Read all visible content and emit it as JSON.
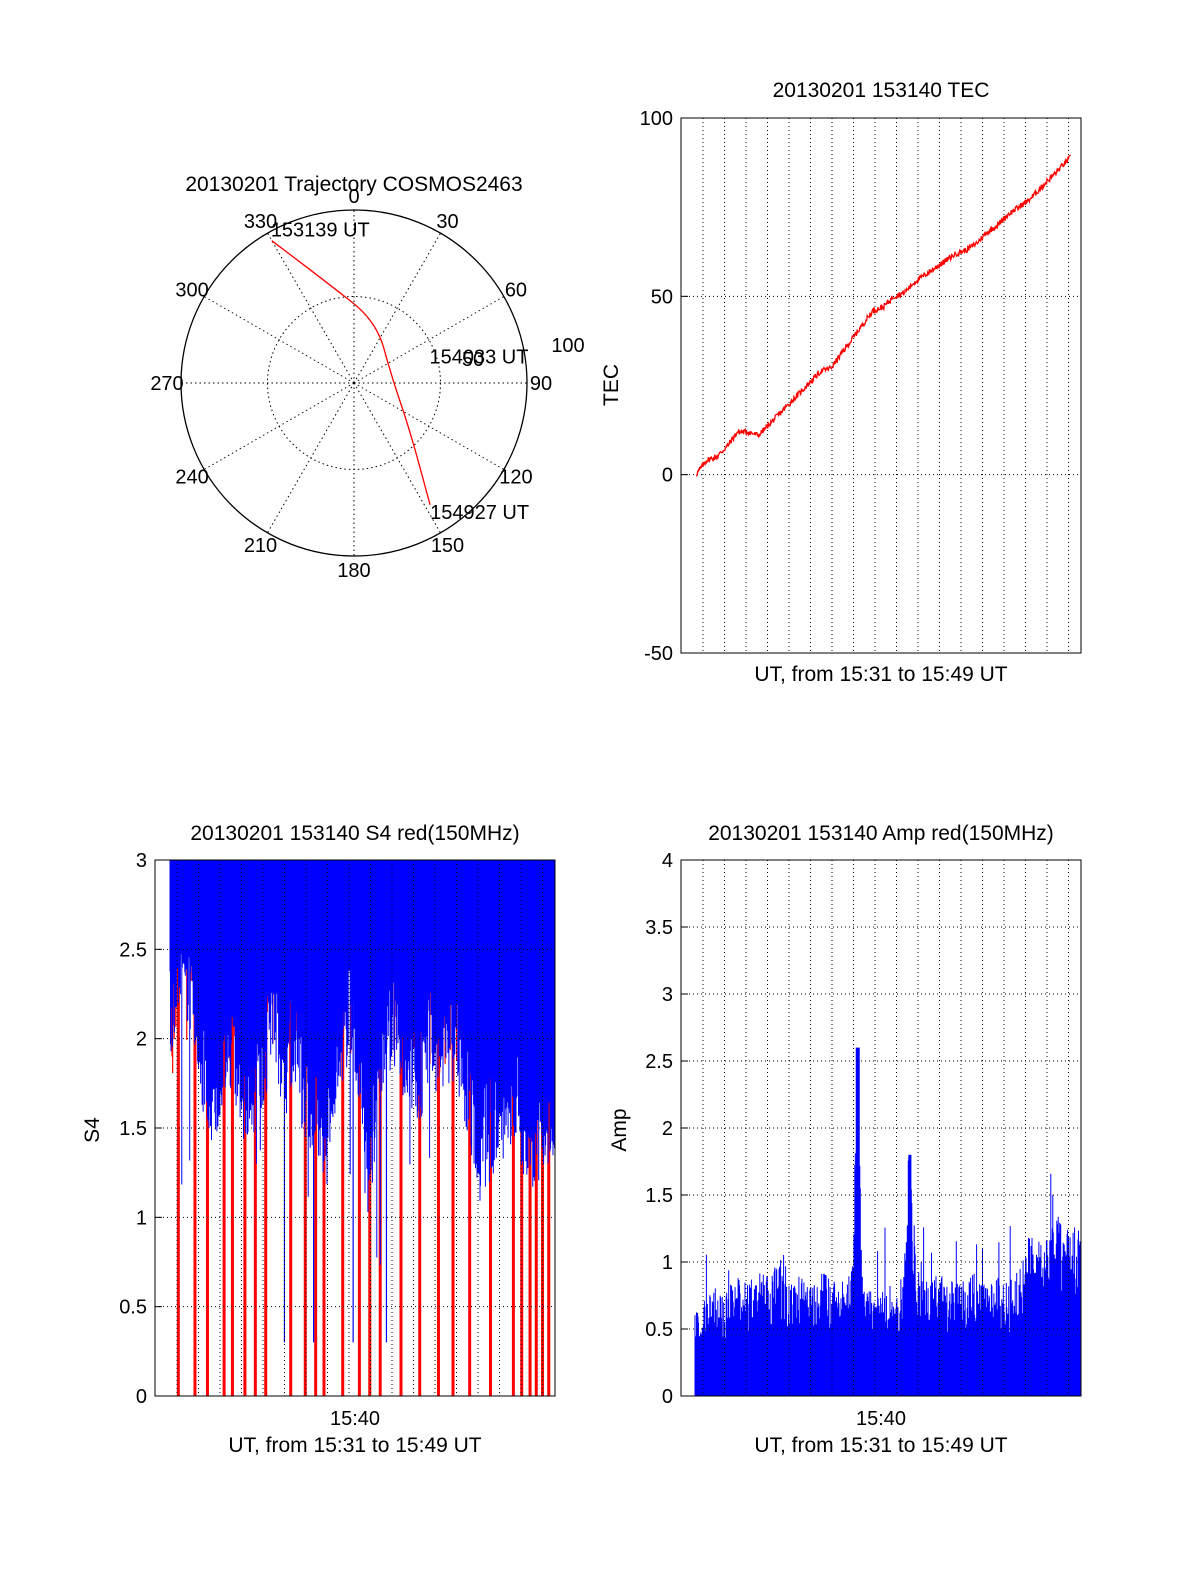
{
  "chart_data": [
    {
      "type": "polar",
      "title": "20130201 Trajectory COSMOS2463",
      "azimuth_labels": [
        "0",
        "30",
        "60",
        "90",
        "120",
        "150",
        "180",
        "210",
        "240",
        "270",
        "300",
        "330"
      ],
      "radius_labels": [
        "50",
        "100"
      ],
      "radius_max": 100,
      "grid": true,
      "series": [
        {
          "color": "#ff0000",
          "points": [
            {
              "az": 330,
              "r": 95
            },
            {
              "az": 345,
              "r": 60
            },
            {
              "az": 20,
              "r": 38
            },
            {
              "az": 80,
              "r": 22
            },
            {
              "az": 130,
              "r": 42
            },
            {
              "az": 148,
              "r": 83
            }
          ]
        }
      ],
      "annotations": [
        {
          "text": "153139 UT",
          "az": 330,
          "r": 95
        },
        {
          "text": "154033 UT",
          "az": 80,
          "r": 22
        },
        {
          "text": "154927 UT",
          "az": 148,
          "r": 83
        }
      ]
    },
    {
      "type": "line",
      "title": "20130201 153140 TEC",
      "xlabel": "UT, from 15:31 to 15:49 UT",
      "ylabel": "TEC",
      "ylim": [
        -50,
        100
      ],
      "yticks": [
        -50,
        0,
        50,
        100
      ],
      "xlim": [
        0,
        18.5
      ],
      "grid": true,
      "series": [
        {
          "color": "#ff0000",
          "x": [
            0,
            0.5,
            1.0,
            1.5,
            2.0,
            2.5,
            3.0,
            3.5,
            4.0,
            4.5,
            5.0,
            5.5,
            6.0,
            6.5,
            7.0,
            7.5,
            8.0,
            8.5,
            9.0,
            9.5,
            10.0,
            10.5,
            11.0,
            11.5,
            12.0,
            12.5,
            13.0,
            13.5,
            14.0,
            14.5,
            15.0,
            15.5,
            16.0,
            16.5,
            17.0,
            17.5,
            18.0
          ],
          "y": [
            0,
            4,
            5,
            8,
            12,
            12,
            11,
            14,
            17,
            20,
            23,
            26,
            29,
            30,
            34,
            38,
            42,
            46,
            47,
            50,
            51,
            54,
            56,
            58,
            60,
            62,
            63,
            65,
            68,
            70,
            73,
            75,
            77,
            80,
            83,
            86,
            89
          ]
        }
      ]
    },
    {
      "type": "bar",
      "title": "20130201 153140 S4 red(150MHz)",
      "xlabel": "UT, from 15:31 to 15:49 UT",
      "ylabel": "S4",
      "ylim": [
        0,
        3
      ],
      "yticks": [
        0,
        0.5,
        1,
        1.5,
        2,
        2.5,
        3
      ],
      "xlim": [
        0,
        18.5
      ],
      "xtick_label": "15:40",
      "grid": true,
      "series": [
        {
          "color": "#0000ff",
          "envelope": [
            2.0,
            2.3,
            2.2,
            1.8,
            1.6,
            1.7,
            1.9,
            1.5,
            1.6,
            1.8,
            2.1,
            1.7,
            1.9,
            1.6,
            1.5,
            1.3,
            1.8,
            2.0,
            1.9,
            1.1,
            1.7,
            2.0,
            1.9,
            1.8,
            1.6,
            2.0,
            1.9,
            2.1,
            1.7,
            1.5,
            1.3,
            1.4,
            1.5,
            1.6,
            1.4,
            1.3,
            1.4,
            1.5
          ]
        },
        {
          "color": "#ff0000",
          "spikes_x": [
            0.4,
            1.2,
            1.8,
            2.6,
            3.0,
            3.6,
            4.1,
            4.6,
            5.8,
            6.5,
            7.0,
            7.4,
            8.3,
            9.1,
            9.6,
            10.1,
            11.1,
            12.0,
            12.9,
            13.6,
            14.4,
            15.4,
            16.5,
            16.9,
            17.3,
            17.6,
            17.9,
            18.2
          ]
        }
      ]
    },
    {
      "type": "bar",
      "title": "20130201 153140 Amp red(150MHz)",
      "xlabel": "UT, from 15:31 to 15:49 UT",
      "ylabel": "Amp",
      "ylim": [
        0,
        4
      ],
      "yticks": [
        0,
        0.5,
        1,
        1.5,
        2,
        2.5,
        3,
        3.5,
        4
      ],
      "xlim": [
        0,
        18.5
      ],
      "xtick_label": "15:40",
      "grid": true,
      "series": [
        {
          "color": "#0000ff",
          "x": [
            0,
            0.5,
            1.0,
            1.5,
            2.0,
            2.5,
            3.0,
            3.5,
            4.0,
            4.5,
            5.0,
            5.5,
            6.0,
            6.5,
            7.0,
            7.5,
            7.8,
            8.0,
            8.5,
            9.0,
            9.5,
            10.0,
            10.3,
            10.6,
            11.0,
            11.5,
            12.0,
            12.5,
            13.0,
            13.5,
            14.0,
            14.5,
            15.0,
            15.5,
            16.0,
            16.5,
            17.0,
            17.5,
            18.0
          ],
          "y": [
            0.6,
            0.75,
            0.8,
            0.75,
            0.85,
            0.8,
            0.9,
            0.85,
            0.95,
            0.8,
            0.85,
            0.8,
            0.9,
            0.85,
            0.8,
            0.9,
            2.6,
            1.0,
            0.7,
            0.75,
            0.8,
            0.85,
            1.8,
            1.0,
            0.8,
            0.9,
            0.85,
            0.8,
            0.85,
            0.9,
            0.8,
            0.85,
            0.8,
            0.9,
            1.1,
            1.2,
            1.25,
            1.3,
            1.2
          ]
        }
      ]
    }
  ]
}
